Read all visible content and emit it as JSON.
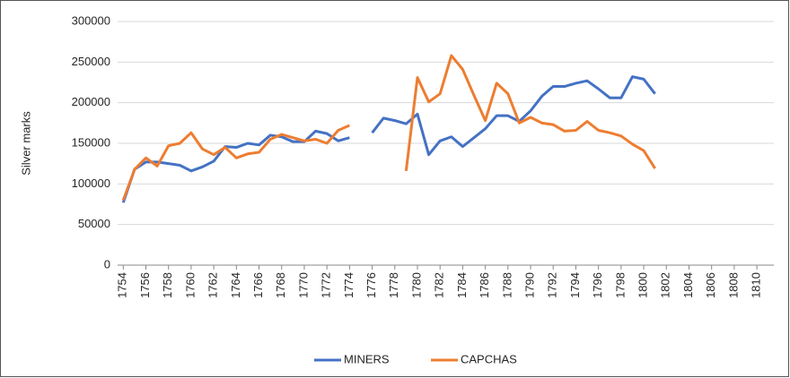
{
  "chart_data": {
    "type": "line",
    "y_label": "Silver marks",
    "x": [
      1754,
      1755,
      1756,
      1757,
      1758,
      1759,
      1760,
      1761,
      1762,
      1763,
      1764,
      1765,
      1766,
      1767,
      1768,
      1769,
      1770,
      1771,
      1772,
      1773,
      1774,
      1775,
      1776,
      1777,
      1778,
      1779,
      1780,
      1781,
      1782,
      1783,
      1784,
      1785,
      1786,
      1787,
      1788,
      1789,
      1790,
      1791,
      1792,
      1793,
      1794,
      1795,
      1796,
      1797,
      1798,
      1799,
      1800,
      1801,
      1802,
      1803,
      1804,
      1805,
      1806,
      1807,
      1808,
      1809,
      1810,
      1811
    ],
    "series": [
      {
        "name": "MINERS",
        "color": "#4472c4",
        "values": [
          77000,
          118000,
          127000,
          127000,
          125000,
          123000,
          116000,
          121000,
          128000,
          146000,
          145000,
          150000,
          148000,
          160000,
          158000,
          152000,
          152000,
          165000,
          162000,
          153000,
          157000,
          null,
          163000,
          181000,
          178000,
          174000,
          186000,
          136000,
          153000,
          158000,
          146000,
          157000,
          168000,
          184000,
          184000,
          177000,
          190000,
          208000,
          220000,
          220000,
          224000,
          227000,
          217000,
          206000,
          206000,
          232000,
          229000,
          211000,
          null,
          null,
          null,
          null,
          null,
          null,
          null,
          null,
          null,
          null
        ]
      },
      {
        "name": "CAPCHAS",
        "color": "#ed7d31",
        "values": [
          80000,
          118000,
          132000,
          122000,
          147000,
          150000,
          163000,
          143000,
          136000,
          145000,
          132000,
          137000,
          139000,
          155000,
          161000,
          157000,
          153000,
          155000,
          150000,
          166000,
          172000,
          null,
          null,
          null,
          null,
          116000,
          231000,
          201000,
          211000,
          258000,
          241000,
          209000,
          178000,
          224000,
          211000,
          175000,
          182000,
          175000,
          173000,
          165000,
          166000,
          177000,
          166000,
          163000,
          159000,
          149000,
          141000,
          119000,
          null,
          null,
          null,
          null,
          null,
          null,
          null,
          null,
          null,
          null
        ]
      }
    ],
    "xlim": [
      1753.5,
      1811.5
    ],
    "xticks": [
      1754,
      1756,
      1758,
      1760,
      1762,
      1764,
      1766,
      1768,
      1770,
      1772,
      1774,
      1776,
      1778,
      1780,
      1782,
      1784,
      1786,
      1788,
      1790,
      1792,
      1794,
      1796,
      1798,
      1800,
      1802,
      1804,
      1806,
      1808,
      1810
    ],
    "ylim": [
      0,
      300000
    ],
    "yticks": [
      0,
      50000,
      100000,
      150000,
      200000,
      250000,
      300000
    ],
    "grid": true,
    "legend": "bottom"
  }
}
